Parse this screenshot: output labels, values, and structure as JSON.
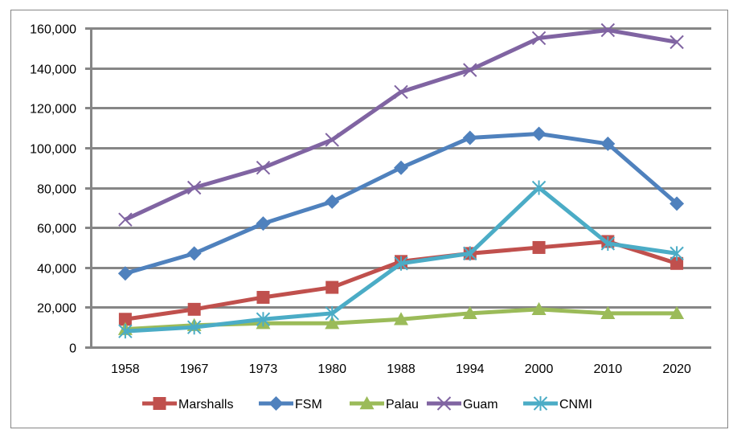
{
  "chart_data": {
    "type": "line",
    "title": "",
    "xlabel": "",
    "ylabel": "",
    "categories": [
      "1958",
      "1967",
      "1973",
      "1980",
      "1988",
      "1994",
      "2000",
      "2010",
      "2020"
    ],
    "ylim": [
      0,
      160000
    ],
    "yticks": [
      0,
      20000,
      40000,
      60000,
      80000,
      100000,
      120000,
      140000,
      160000
    ],
    "ytick_labels": [
      "0",
      "20,000",
      "40,000",
      "60,000",
      "80,000",
      "100,000",
      "120,000",
      "140,000",
      "160,000"
    ],
    "grid": true,
    "legend_position": "bottom",
    "series": [
      {
        "name": "Marshalls",
        "color": "#C0504D",
        "marker": "square",
        "values": [
          14000,
          19000,
          25000,
          30000,
          43000,
          47000,
          50000,
          53000,
          42000
        ]
      },
      {
        "name": "FSM",
        "color": "#4F81BD",
        "marker": "diamond",
        "values": [
          37000,
          47000,
          62000,
          73000,
          90000,
          105000,
          107000,
          102000,
          72000
        ]
      },
      {
        "name": "Palau",
        "color": "#9BBB59",
        "marker": "triangle",
        "values": [
          9000,
          11000,
          12000,
          12000,
          14000,
          17000,
          19000,
          17000,
          17000
        ]
      },
      {
        "name": "Guam",
        "color": "#8064A2",
        "marker": "x",
        "values": [
          64000,
          80000,
          90000,
          104000,
          128000,
          139000,
          155000,
          159000,
          153000
        ]
      },
      {
        "name": "CNMI",
        "color": "#4BACC6",
        "marker": "star",
        "values": [
          8000,
          10000,
          14000,
          17000,
          42000,
          47000,
          80000,
          52000,
          47000
        ]
      }
    ]
  }
}
